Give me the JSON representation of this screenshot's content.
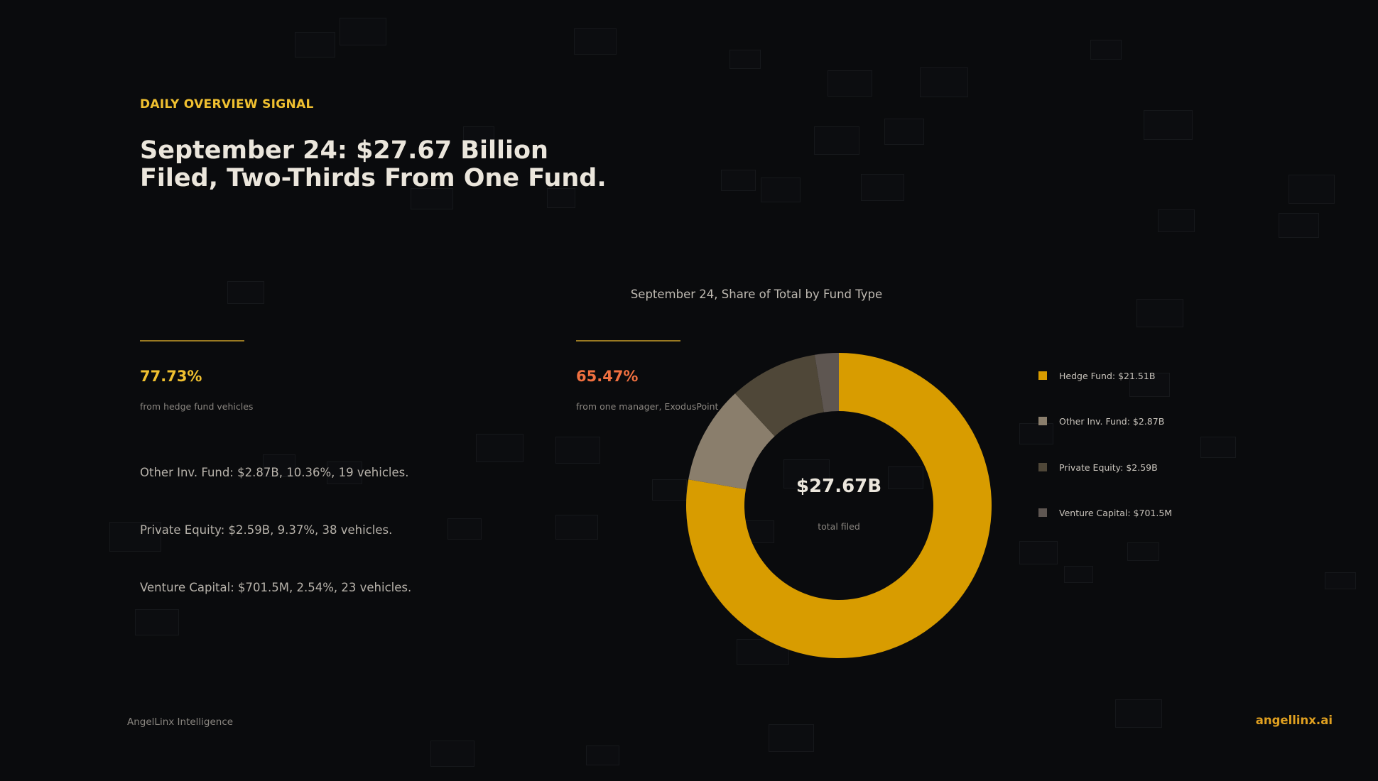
{
  "header": {
    "eyebrow": "DAILY OVERVIEW SIGNAL",
    "headline_line1": "September 24: $27.67 Billion",
    "headline_line2": "Filed, Two-Thirds From One Fund."
  },
  "stats": [
    {
      "value": "77.73%",
      "caption": "from hedge fund vehicles",
      "color": "#f0c030"
    },
    {
      "value": "65.47%",
      "caption": "from one manager, ExodusPoint",
      "color": "#f07040"
    }
  ],
  "details": [
    "Other Inv. Fund: $2.87B, 10.36%, 19 vehicles.",
    "Private Equity: $2.59B, 9.37%, 38 vehicles.",
    "Venture Capital: $701.5M, 2.54%, 23 vehicles."
  ],
  "chart_data": {
    "type": "pie",
    "variant": "donut",
    "title": "September 24, Share of Total by Fund Type",
    "center_value": "$27.67B",
    "center_label": "total filed",
    "categories": [
      "Hedge Fund",
      "Other Inv. Fund",
      "Private Equity",
      "Venture Capital"
    ],
    "values": [
      21.51,
      2.87,
      2.59,
      0.7015
    ],
    "unit": "$B",
    "colors": [
      "#d89c00",
      "#8a7e6c",
      "#4f4738",
      "#5e5651"
    ],
    "legend": [
      {
        "label": "Hedge Fund: $21.51B",
        "color": "#d89c00"
      },
      {
        "label": "Other Inv. Fund: $2.87B",
        "color": "#8a7e6c"
      },
      {
        "label": "Private Equity: $2.59B",
        "color": "#4f4738"
      },
      {
        "label": "Venture Capital: $701.5M",
        "color": "#5e5651"
      }
    ],
    "legend_position": "right"
  },
  "footer": {
    "left": "AngelLinx Intelligence",
    "right": "angellinx.ai"
  }
}
